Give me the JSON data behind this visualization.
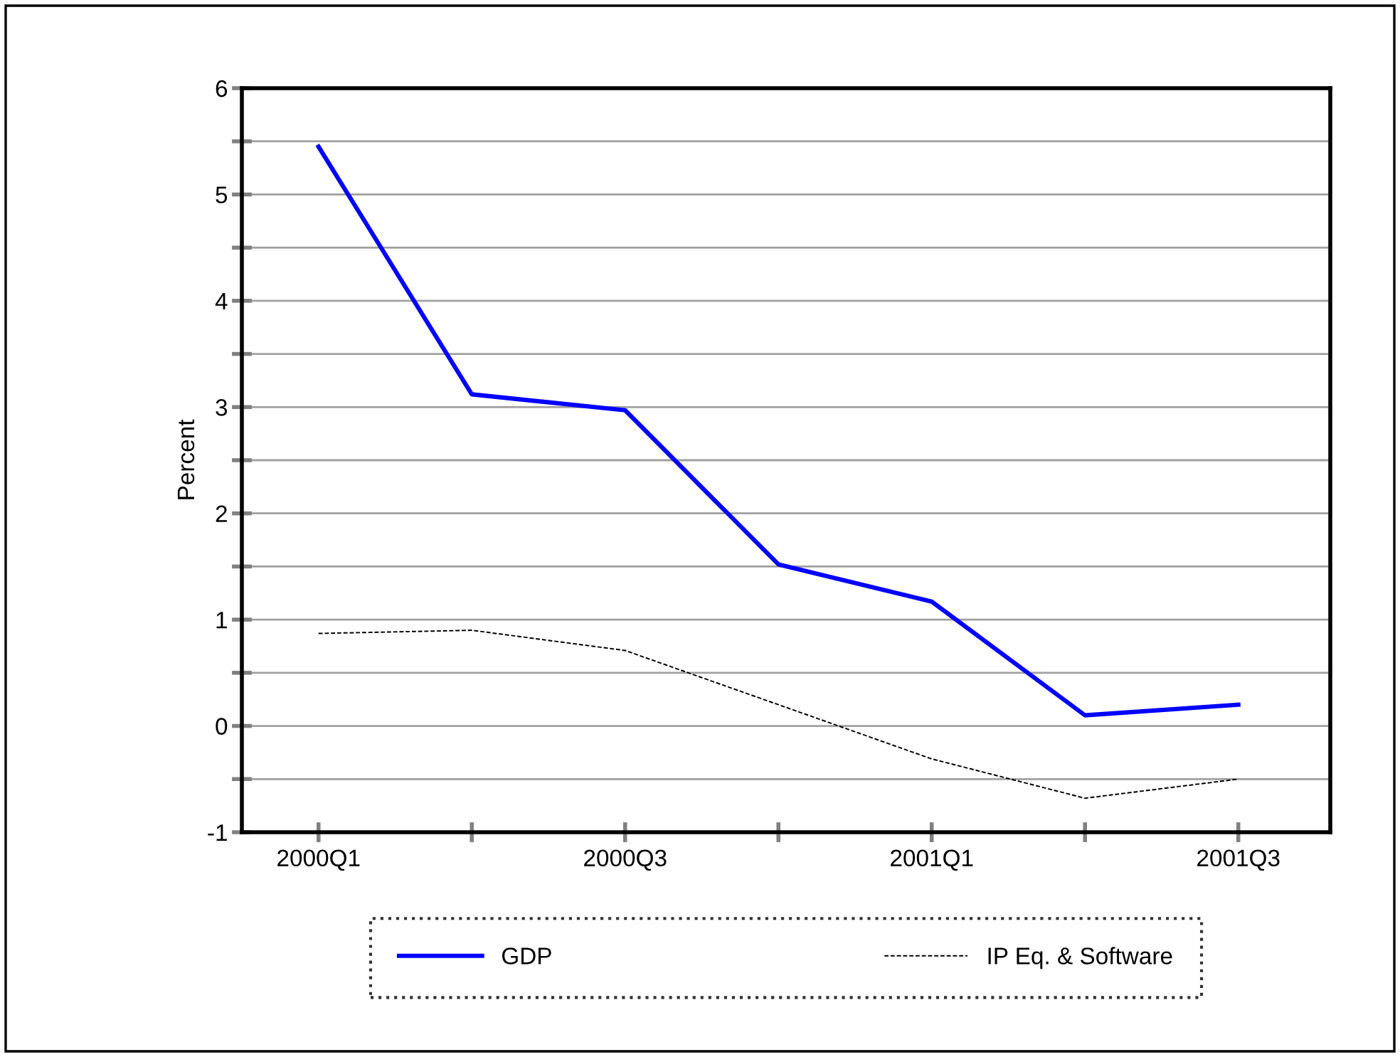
{
  "chart_data": {
    "type": "line",
    "ylabel": "Percent",
    "categories": [
      "2000Q1",
      null,
      "2000Q3",
      null,
      "2001Q1",
      null,
      "2001Q3"
    ],
    "series": [
      {
        "name": "GDP",
        "color": "#0000ff",
        "line_style": "solid",
        "values": [
          5.45,
          3.12,
          2.97,
          1.52,
          1.17,
          0.1,
          0.2
        ]
      },
      {
        "name": "IP Eq. & Software",
        "color": "#000000",
        "line_style": "dashed",
        "values": [
          0.87,
          0.9,
          0.71,
          0.2,
          -0.31,
          -0.68,
          -0.5
        ]
      }
    ],
    "ylim": [
      -1,
      6
    ],
    "yticks": [
      -1,
      {
        "value": -0.5,
        "label": null
      },
      0,
      {
        "value": 0.5,
        "label": null
      },
      1,
      {
        "value": 1.5,
        "label": null
      },
      2,
      {
        "value": 2.5,
        "label": null
      },
      3,
      {
        "value": 3.5,
        "label": null
      },
      4,
      {
        "value": 4.5,
        "label": null
      },
      5,
      {
        "value": 5.5,
        "label": null
      },
      6
    ],
    "grid": "y",
    "legend": "bottom",
    "marker": "none"
  }
}
